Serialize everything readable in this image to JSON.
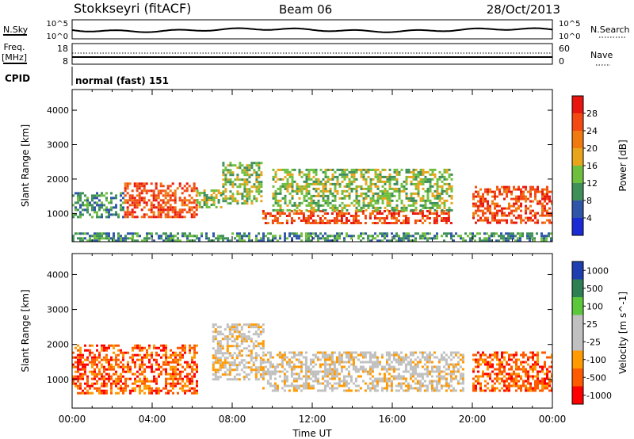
{
  "header": {
    "station": "Stokkseyri (fitACF)",
    "beam": "Beam 06",
    "date": "28/Oct/2013"
  },
  "noise_panel": {
    "left_label": "N.Sky",
    "right_label": "N.Search",
    "left_ticks": [
      "10^5",
      "10^0"
    ],
    "right_ticks": [
      "10^5",
      "10^0"
    ]
  },
  "freq_panel": {
    "left_label_1": "Freq.",
    "left_label_2": "[MHz]",
    "right_label": "Nave",
    "left_ticks": [
      "18",
      "8"
    ],
    "right_ticks": [
      "60",
      "0"
    ]
  },
  "cpid": {
    "label": "CPID",
    "value": "normal (fast) 151"
  },
  "x_axis": {
    "label": "Time UT",
    "ticks": [
      "00:00",
      "04:00",
      "08:00",
      "12:00",
      "16:00",
      "20:00",
      "00:00"
    ]
  },
  "colors": {
    "power": [
      "#1a2bd6",
      "#2f55a8",
      "#3f8f5a",
      "#6fbf3f",
      "#e8a51c",
      "#f07a10",
      "#f24a12",
      "#e8160f"
    ],
    "velocity": [
      "#ff0000",
      "#ff5a00",
      "#ff9a00",
      "#c0c0c0",
      "#c0c0c0",
      "#5ac83a",
      "#2f7f55",
      "#1f3fb0"
    ]
  },
  "chart_data": [
    {
      "type": "heatmap",
      "ylabel": "Slant Range [km]",
      "yticks": [
        "1000",
        "2000",
        "3000",
        "4000"
      ],
      "ylim": [
        180,
        4600
      ],
      "xlim": [
        0,
        24
      ],
      "colorbar": {
        "label": "Power [dB]",
        "ticks": [
          "4",
          "8",
          "12",
          "16",
          "20",
          "24",
          "28"
        ],
        "range": [
          0,
          32
        ]
      },
      "features": [
        {
          "t0": 0.0,
          "t1": 2.6,
          "r0": 880,
          "r1": 1620,
          "value": 10
        },
        {
          "t0": 2.6,
          "t1": 6.2,
          "r0": 900,
          "r1": 1900,
          "value": 26
        },
        {
          "t0": 6.2,
          "t1": 7.5,
          "r0": 1200,
          "r1": 1700,
          "value": 12
        },
        {
          "t0": 7.5,
          "t1": 9.5,
          "r0": 1300,
          "r1": 2500,
          "value": 12
        },
        {
          "t0": 9.5,
          "t1": 19.0,
          "r0": 700,
          "r1": 1100,
          "value": 26
        },
        {
          "t0": 10.0,
          "t1": 19.0,
          "r0": 1100,
          "r1": 2300,
          "value": 12
        },
        {
          "t0": 20.0,
          "t1": 24.0,
          "r0": 700,
          "r1": 1800,
          "value": 26
        },
        {
          "t0": 0.0,
          "t1": 24.0,
          "r0": 200,
          "r1": 450,
          "value": 8
        }
      ]
    },
    {
      "type": "heatmap",
      "ylabel": "Slant Range [km]",
      "yticks": [
        "1000",
        "2000",
        "3000",
        "4000"
      ],
      "ylim": [
        180,
        4600
      ],
      "xlim": [
        0,
        24
      ],
      "colorbar": {
        "label": "Velocity [m s^-1]",
        "ticks": [
          "1000",
          "500",
          "100",
          "25",
          "-25",
          "-100",
          "-500",
          "-1000"
        ]
      },
      "features": [
        {
          "t0": 0.0,
          "t1": 6.2,
          "r0": 600,
          "r1": 2000,
          "value": "-500"
        },
        {
          "t0": 7.0,
          "t1": 9.5,
          "r0": 1000,
          "r1": 2600,
          "value": "0"
        },
        {
          "t0": 9.5,
          "t1": 19.5,
          "r0": 700,
          "r1": 1800,
          "value": "0"
        },
        {
          "t0": 20.0,
          "t1": 24.0,
          "r0": 700,
          "r1": 1800,
          "value": "-500"
        }
      ]
    }
  ]
}
